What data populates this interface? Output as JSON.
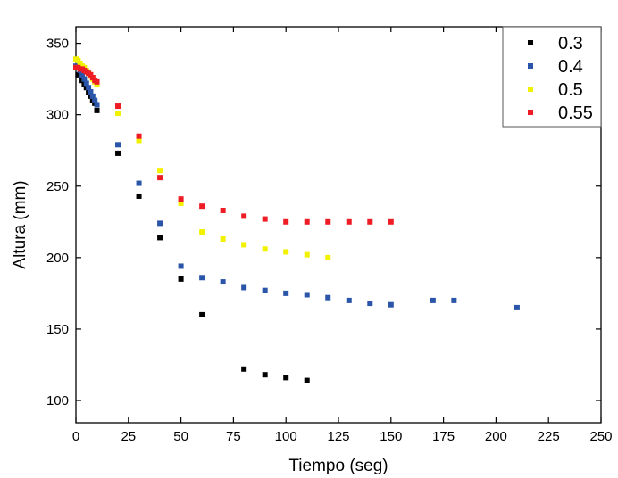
{
  "chart_data": {
    "type": "scatter",
    "title": "",
    "xlabel": "Tiempo (seg)",
    "ylabel": "Altura (mm)",
    "xlim": [
      0,
      250
    ],
    "ylim": [
      84.4,
      361.6
    ],
    "xticks": [
      0,
      25,
      50,
      75,
      100,
      125,
      150,
      175,
      200,
      225,
      250
    ],
    "yticks": [
      100,
      150,
      200,
      250,
      300,
      350
    ],
    "grid": false,
    "legend_position": "top-right",
    "series": [
      {
        "name": "0.3",
        "color": "#000000",
        "x": [
          1,
          2,
          3,
          4,
          5,
          6,
          7,
          8,
          9,
          10,
          20,
          30,
          40,
          50,
          60,
          80,
          90,
          100,
          110
        ],
        "y": [
          328,
          328,
          324,
          321,
          319,
          316,
          313,
          310,
          308,
          303,
          273,
          243,
          214,
          185,
          160,
          122,
          118,
          116,
          114
        ]
      },
      {
        "name": "0.4",
        "color": "#2a55a8",
        "x": [
          0,
          1,
          2,
          3,
          4,
          5,
          6,
          7,
          8,
          9,
          10,
          20,
          30,
          40,
          50,
          60,
          70,
          80,
          90,
          100,
          110,
          120,
          130,
          140,
          150,
          170,
          180,
          210
        ],
        "y": [
          334,
          333,
          331,
          328,
          325,
          322,
          319,
          316,
          313,
          310,
          307,
          279,
          252,
          224,
          194,
          186,
          183,
          179,
          177,
          175,
          174,
          172,
          170,
          168,
          167,
          170,
          170,
          165
        ]
      },
      {
        "name": "0.5",
        "color": "#f2f200",
        "x": [
          0,
          1,
          2,
          3,
          4,
          5,
          6,
          7,
          8,
          9,
          10,
          20,
          30,
          40,
          50,
          60,
          70,
          80,
          90,
          100,
          110,
          120
        ],
        "y": [
          339,
          338,
          336,
          334,
          333,
          331,
          329,
          327,
          325,
          323,
          321,
          301,
          282,
          261,
          238,
          218,
          213,
          209,
          206,
          204,
          202,
          200
        ]
      },
      {
        "name": "0.55",
        "color": "#ee1c24",
        "x": [
          0,
          1,
          2,
          3,
          4,
          5,
          6,
          7,
          8,
          9,
          10,
          20,
          30,
          40,
          50,
          60,
          70,
          80,
          90,
          100,
          110,
          120,
          130,
          140,
          150
        ],
        "y": [
          333,
          333,
          332,
          332,
          331,
          330,
          329,
          328,
          326,
          324,
          323,
          306,
          285,
          256,
          241,
          236,
          233,
          229,
          227,
          225,
          225,
          225,
          225,
          225,
          225
        ]
      }
    ]
  }
}
